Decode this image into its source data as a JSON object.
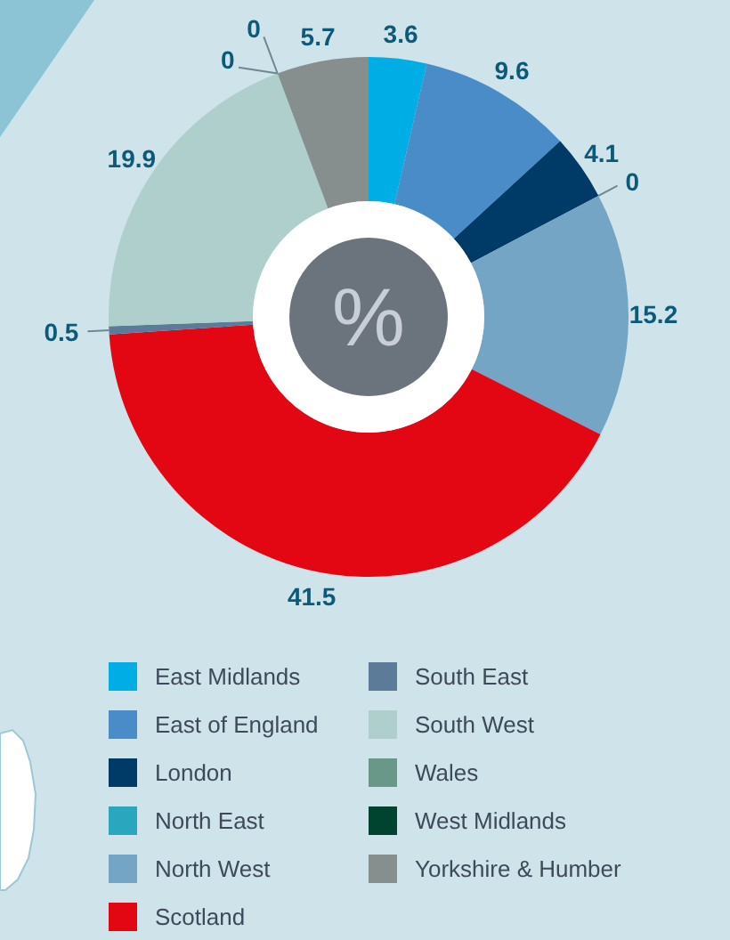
{
  "chart_data": {
    "type": "donut",
    "categories": [
      "East Midlands",
      "East of England",
      "London",
      "North East",
      "North West",
      "Scotland",
      "South East",
      "South West",
      "Wales",
      "West Midlands",
      "Yorkshire & Humber"
    ],
    "values": [
      3.6,
      9.6,
      4.1,
      0,
      15.2,
      41.5,
      0.5,
      19.9,
      0,
      0,
      5.7
    ],
    "value_labels": [
      "3.6",
      "9.6",
      "4.1",
      "0",
      "15.2",
      "41.5",
      "0.5",
      "19.9",
      "0",
      "0",
      "5.7"
    ],
    "colors": [
      "#00aee6",
      "#4a8cc8",
      "#003a66",
      "#2aa6bf",
      "#74a5c5",
      "#e30613",
      "#5b7b99",
      "#aecfcb",
      "#6a9888",
      "#00442f",
      "#868e8e"
    ],
    "legend": "bottom",
    "annotations": [
      "%"
    ]
  }
}
